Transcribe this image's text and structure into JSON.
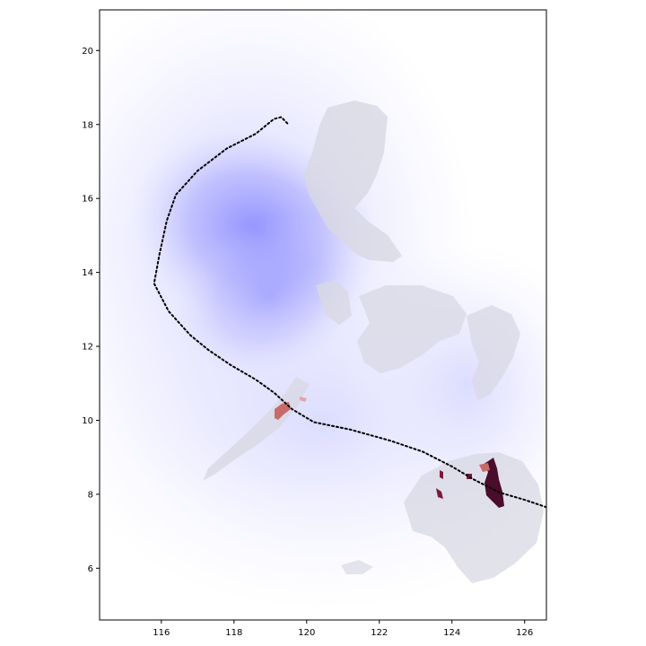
{
  "map": {
    "x_axis": {
      "range": [
        114.3,
        126.6
      ],
      "ticks": [
        "116",
        "118",
        "120",
        "122",
        "124",
        "126"
      ]
    },
    "y_axis": {
      "range": [
        4.6,
        21.1
      ],
      "ticks": [
        "6",
        "8",
        "10",
        "12",
        "14",
        "16",
        "18",
        "20"
      ]
    },
    "storm_track": {
      "style": "dotted",
      "color": "#000000",
      "points": [
        [
          126.6,
          7.65
        ],
        [
          126.0,
          7.85
        ],
        [
          125.3,
          8.05
        ],
        [
          124.6,
          8.4
        ],
        [
          124.0,
          8.75
        ],
        [
          123.2,
          9.15
        ],
        [
          122.3,
          9.45
        ],
        [
          121.2,
          9.75
        ],
        [
          120.2,
          9.95
        ],
        [
          119.6,
          10.3
        ],
        [
          119.1,
          10.75
        ],
        [
          118.6,
          11.1
        ],
        [
          117.9,
          11.5
        ],
        [
          117.3,
          11.9
        ],
        [
          116.8,
          12.3
        ],
        [
          116.2,
          12.95
        ],
        [
          115.8,
          13.7
        ],
        [
          115.95,
          14.5
        ],
        [
          116.15,
          15.4
        ],
        [
          116.4,
          16.1
        ],
        [
          117.0,
          16.75
        ],
        [
          117.8,
          17.35
        ],
        [
          118.6,
          17.75
        ],
        [
          119.1,
          18.15
        ],
        [
          119.3,
          18.2
        ],
        [
          119.5,
          18.0
        ]
      ]
    },
    "wind_field": {
      "color": "#8f8fff",
      "center": [
        120.0,
        14.2
      ]
    },
    "land_color": "#d8d8e4",
    "impact_colors": [
      "#4a0d2b",
      "#7a1a3a",
      "#c96a6a",
      "#e8a3a3"
    ]
  }
}
